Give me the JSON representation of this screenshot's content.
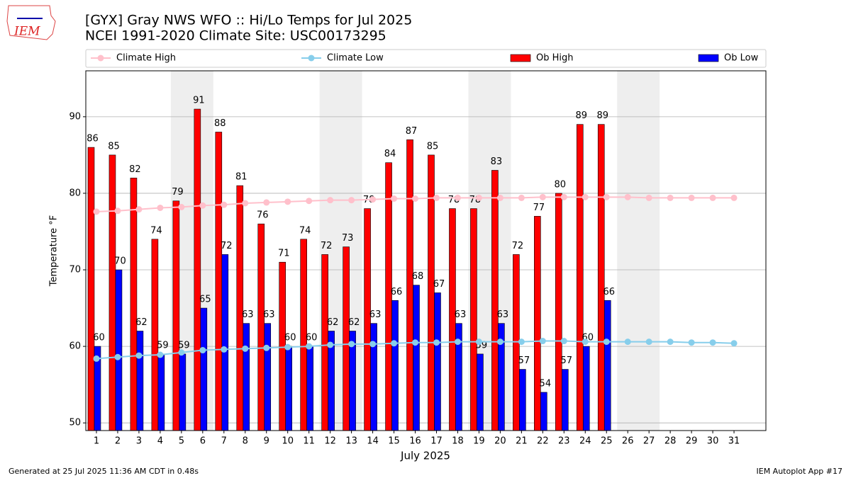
{
  "chart_data": {
    "type": "bar",
    "title": "[GYX] Gray NWS WFO :: Hi/Lo Temps for Jul 2025",
    "subtitle": "NCEI 1991-2020 Climate Site: USC00173295",
    "logo_text": "IEM",
    "ylabel": "Temperature °F",
    "xlabel": "July 2025",
    "footer_left": "Generated at 25 Jul 2025 11:36 AM CDT in 0.48s",
    "footer_right": "IEM Autoplot App #17",
    "x": [
      1,
      2,
      3,
      4,
      5,
      6,
      7,
      8,
      9,
      10,
      11,
      12,
      13,
      14,
      15,
      16,
      17,
      18,
      19,
      20,
      21,
      22,
      23,
      24,
      25,
      26,
      27,
      28,
      29,
      30,
      31
    ],
    "xlim": [
      0.5,
      32.5
    ],
    "xticks": [
      1,
      2,
      3,
      4,
      5,
      6,
      7,
      8,
      9,
      10,
      11,
      12,
      13,
      14,
      15,
      16,
      17,
      18,
      19,
      20,
      21,
      22,
      23,
      24,
      25,
      26,
      27,
      28,
      29,
      30,
      31
    ],
    "ylim": [
      49,
      96
    ],
    "yticks": [
      50,
      60,
      70,
      80,
      90
    ],
    "grid": true,
    "weekend_shading": [
      [
        4.5,
        6.5
      ],
      [
        11.5,
        13.5
      ],
      [
        18.5,
        20.5
      ],
      [
        25.5,
        27.5
      ]
    ],
    "series": [
      {
        "name": "Climate High",
        "type": "line",
        "color": "#ffc0cb",
        "values": [
          77.6,
          77.7,
          77.9,
          78.1,
          78.2,
          78.4,
          78.5,
          78.7,
          78.8,
          78.9,
          79.0,
          79.1,
          79.1,
          79.2,
          79.3,
          79.3,
          79.4,
          79.4,
          79.4,
          79.4,
          79.4,
          79.5,
          79.5,
          79.5,
          79.5,
          79.5,
          79.4,
          79.4,
          79.4,
          79.4,
          79.4
        ]
      },
      {
        "name": "Climate Low",
        "type": "line",
        "color": "#87ceeb",
        "values": [
          58.4,
          58.6,
          58.8,
          58.9,
          59.2,
          59.5,
          59.6,
          59.7,
          59.8,
          59.9,
          60.0,
          60.2,
          60.3,
          60.3,
          60.4,
          60.5,
          60.5,
          60.6,
          60.6,
          60.6,
          60.6,
          60.7,
          60.7,
          60.6,
          60.6,
          60.6,
          60.6,
          60.6,
          60.5,
          60.5,
          60.4
        ]
      },
      {
        "name": "Ob High",
        "type": "bar",
        "color": "#ff0000",
        "values": [
          86,
          85,
          82,
          74,
          79,
          91,
          88,
          81,
          76,
          71,
          74,
          72,
          73,
          78,
          84,
          87,
          85,
          78,
          78,
          83,
          72,
          77,
          80,
          89,
          89,
          null,
          null,
          null,
          null,
          null,
          null
        ]
      },
      {
        "name": "Ob Low",
        "type": "bar",
        "color": "#0000ff",
        "values": [
          60,
          70,
          62,
          59,
          59,
          65,
          72,
          63,
          63,
          60,
          60,
          62,
          62,
          63,
          66,
          68,
          67,
          63,
          59,
          63,
          57,
          54,
          57,
          60,
          66,
          null,
          null,
          null,
          null,
          null,
          null
        ]
      }
    ]
  }
}
